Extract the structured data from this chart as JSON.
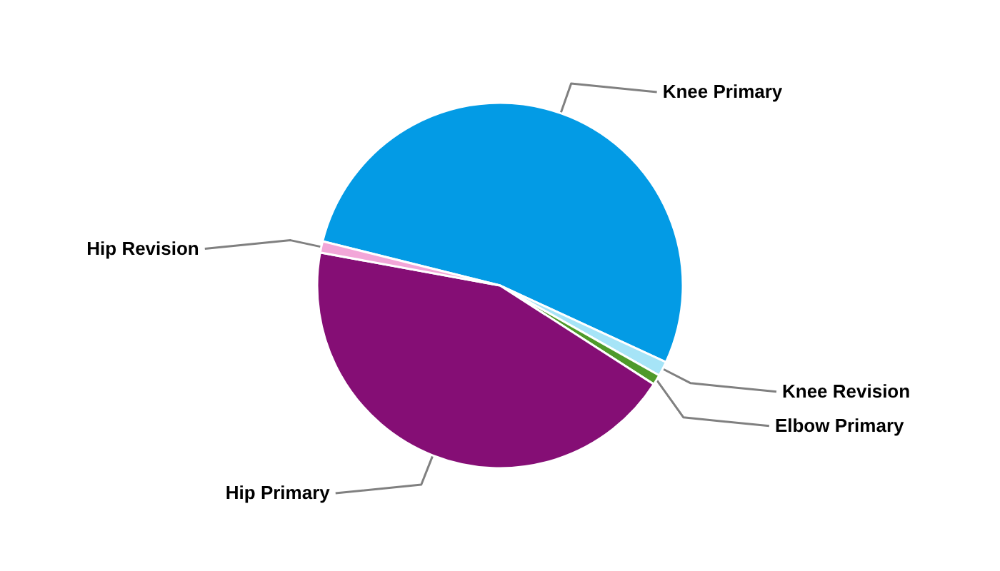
{
  "chart_data": {
    "type": "pie",
    "categories": [
      "Knee Primary",
      "Knee Revision",
      "Elbow Primary",
      "Hip Primary",
      "Hip Revision"
    ],
    "values": [
      53.0,
      1.3,
      0.9,
      43.8,
      1.0
    ],
    "colors": [
      "#039be5",
      "#a6e4f7",
      "#4e9a2a",
      "#850e75",
      "#f2a6d8"
    ]
  }
}
